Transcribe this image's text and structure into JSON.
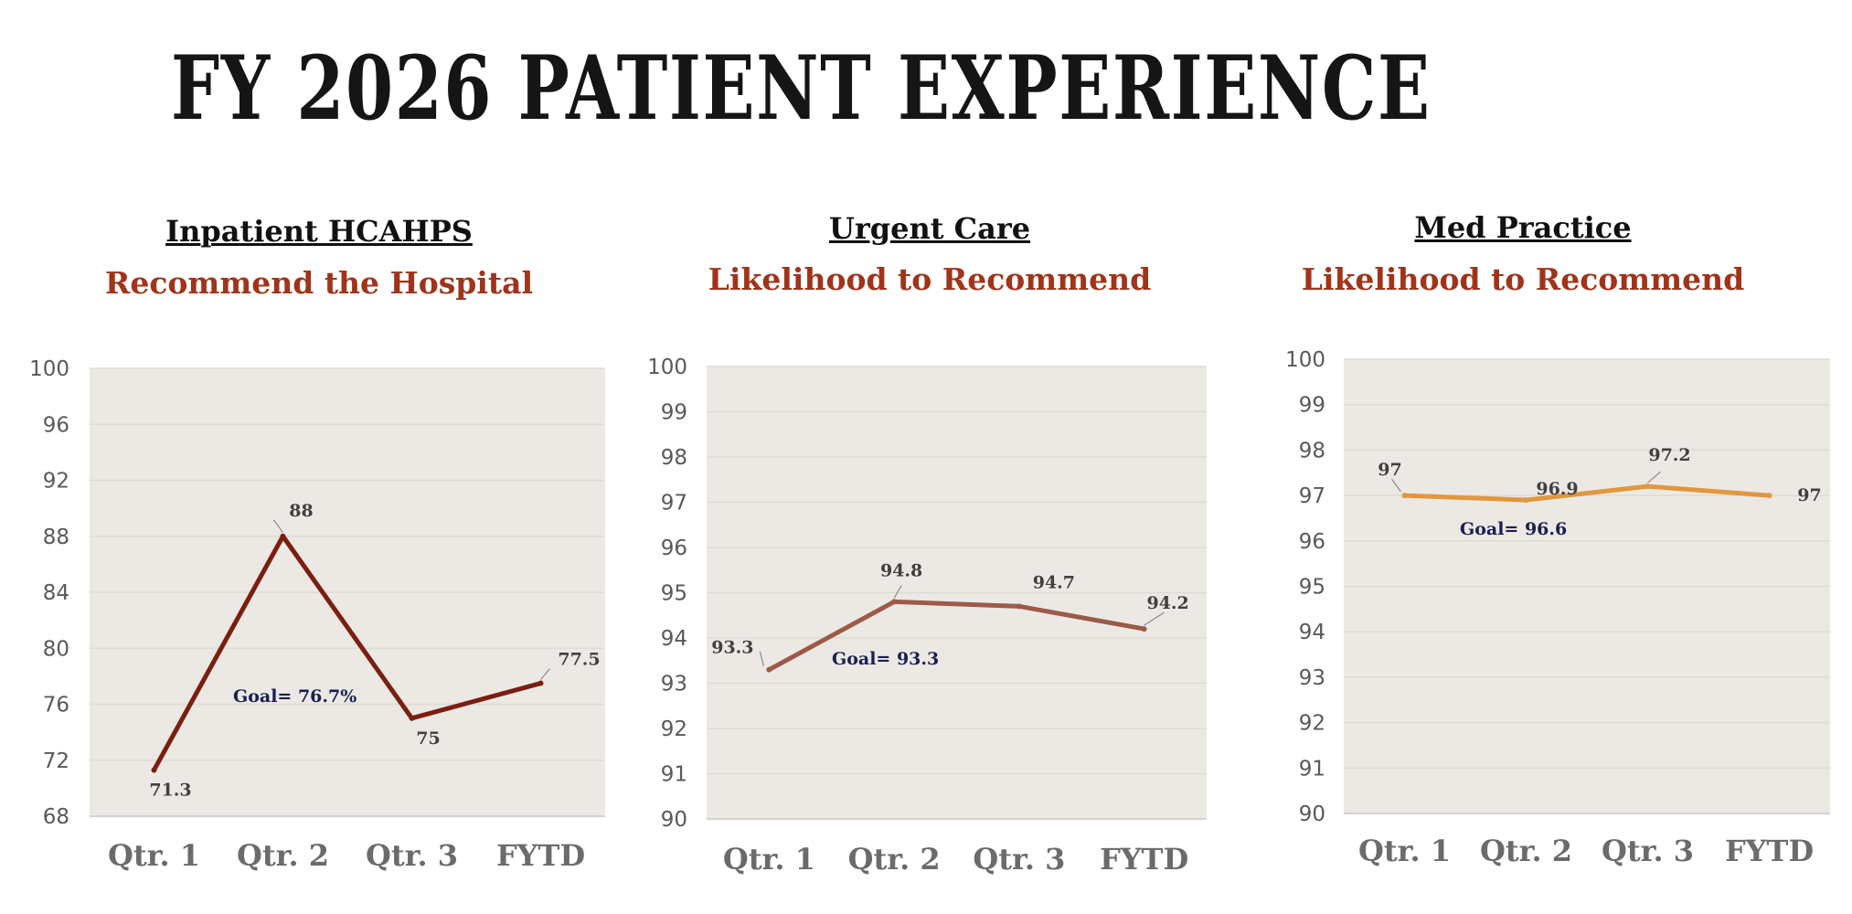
{
  "page": {
    "title": "FY 2026 PATIENT EXPERIENCE"
  },
  "chart_data": [
    {
      "type": "line",
      "title": "Inpatient HCAHPS",
      "subtitle": "Recommend the Hospital",
      "categories": [
        "Qtr. 1",
        "Qtr. 2",
        "Qtr. 3",
        "FYTD"
      ],
      "series": [
        {
          "values": [
            71.3,
            88,
            75,
            77.5
          ]
        }
      ],
      "data_labels": [
        "71.3",
        "88",
        "75",
        "77.5"
      ],
      "ylim": [
        68,
        100
      ],
      "yticks": [
        68,
        72,
        76,
        80,
        84,
        88,
        92,
        96,
        100
      ],
      "goal_label": "Goal= 76.7%",
      "line_color": "#7A1E10",
      "grid": true
    },
    {
      "type": "line",
      "title": "Urgent Care",
      "subtitle": "Likelihood to Recommend",
      "categories": [
        "Qtr. 1",
        "Qtr. 2",
        "Qtr. 3",
        "FYTD"
      ],
      "series": [
        {
          "values": [
            93.3,
            94.8,
            94.7,
            94.2
          ]
        }
      ],
      "data_labels": [
        "93.3",
        "94.8",
        "94.7",
        "94.2"
      ],
      "ylim": [
        90,
        100
      ],
      "yticks": [
        90,
        91,
        92,
        93,
        94,
        95,
        96,
        97,
        98,
        99,
        100
      ],
      "goal_label": "Goal= 93.3",
      "line_color": "#9C5A48",
      "grid": true
    },
    {
      "type": "line",
      "title": "Med Practice",
      "subtitle": "Likelihood to Recommend",
      "categories": [
        "Qtr. 1",
        "Qtr. 2",
        "Qtr. 3",
        "FYTD"
      ],
      "series": [
        {
          "values": [
            97,
            96.9,
            97.2,
            97
          ]
        }
      ],
      "data_labels": [
        "97",
        "96.9",
        "97.2",
        "97"
      ],
      "ylim": [
        90,
        100
      ],
      "yticks": [
        90,
        91,
        92,
        93,
        94,
        95,
        96,
        97,
        98,
        99,
        100
      ],
      "goal_label": "Goal= 96.6",
      "line_color": "#E0973E",
      "grid": true
    }
  ]
}
